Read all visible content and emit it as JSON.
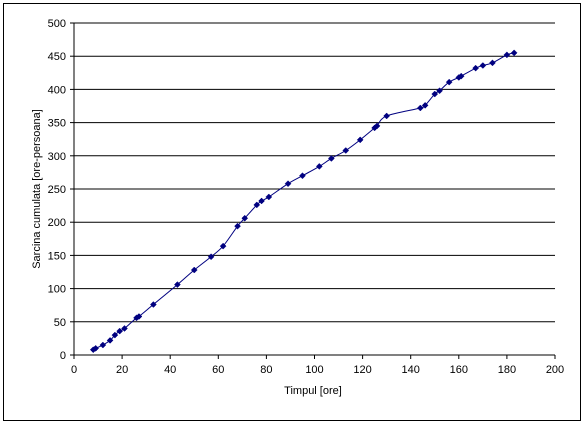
{
  "chart_data": {
    "type": "line",
    "title": "",
    "xlabel": "Timpul [ore]",
    "ylabel": "Sarcina cumulata [ore-persoana]",
    "xlim": [
      0,
      200
    ],
    "ylim": [
      0,
      500
    ],
    "xticks": [
      0,
      20,
      40,
      60,
      80,
      100,
      120,
      140,
      160,
      180,
      200
    ],
    "yticks": [
      0,
      50,
      100,
      150,
      200,
      250,
      300,
      350,
      400,
      450,
      500
    ],
    "grid": "horizontal",
    "legend": "none",
    "series": [
      {
        "color": "#000080",
        "marker": "diamond",
        "x": [
          8,
          9,
          12,
          15,
          17,
          19,
          21,
          26,
          27,
          33,
          43,
          50,
          57,
          62,
          68,
          71,
          76,
          78,
          81,
          89,
          95,
          102,
          107,
          113,
          119,
          125,
          126,
          130,
          144,
          146,
          150,
          152,
          156,
          160,
          161,
          167,
          170,
          174,
          180,
          183
        ],
        "y": [
          8,
          10,
          15,
          22,
          30,
          36,
          40,
          56,
          58,
          76,
          106,
          128,
          148,
          164,
          194,
          206,
          226,
          232,
          238,
          258,
          270,
          284,
          296,
          308,
          324,
          342,
          345,
          360,
          372,
          376,
          393,
          398,
          411,
          418,
          420,
          432,
          436,
          440,
          452,
          455
        ]
      }
    ]
  }
}
